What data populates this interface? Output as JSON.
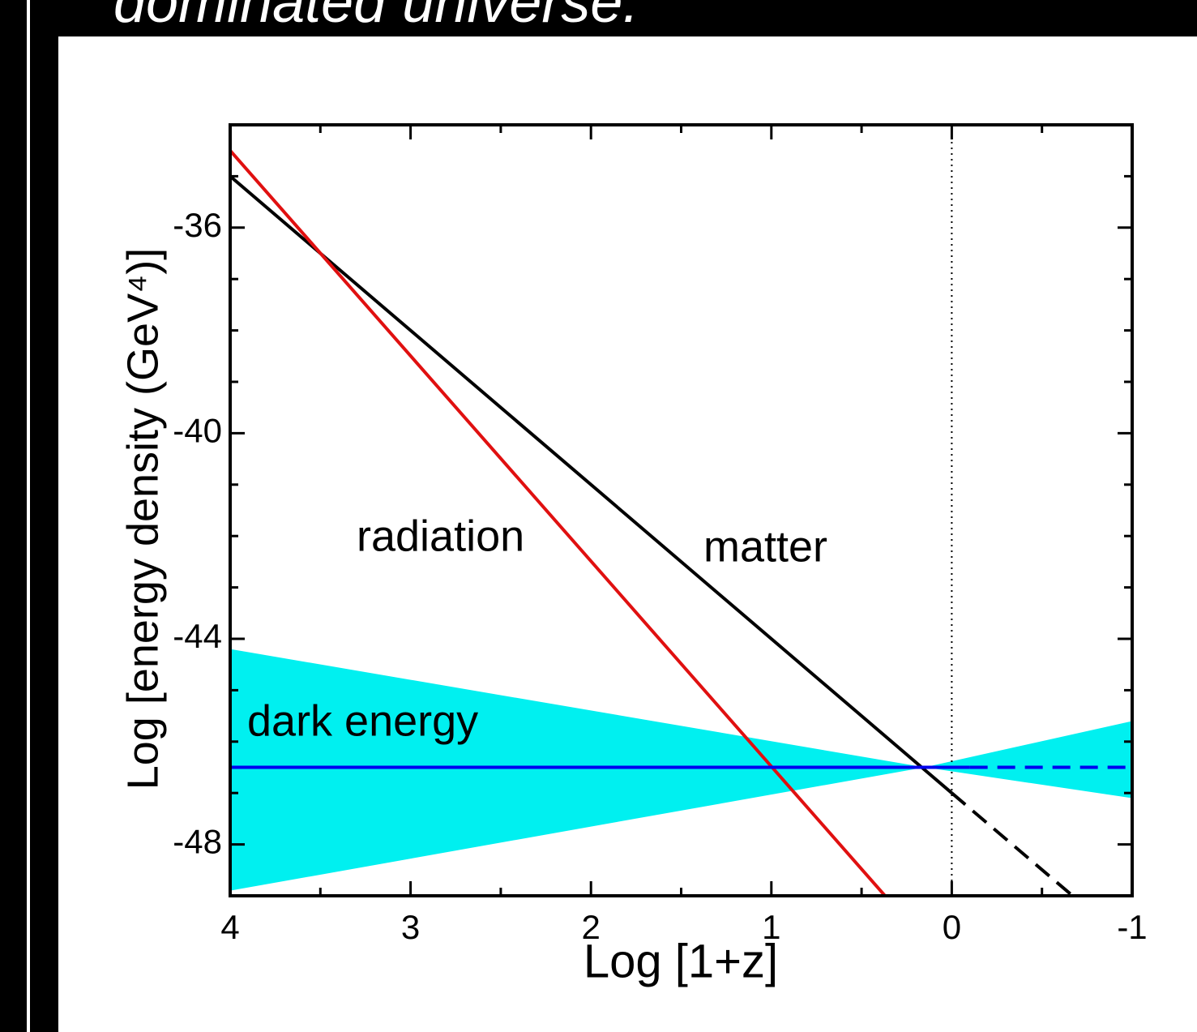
{
  "slide_text": "dominated universe.",
  "chart_data": {
    "type": "line",
    "xlabel": "Log [1+z]",
    "ylabel": "Log [energy density (GeV⁴)]",
    "xlim": [
      4,
      -1
    ],
    "ylim": [
      -49,
      -34
    ],
    "xticks": [
      4,
      3,
      2,
      1,
      0,
      -1
    ],
    "xminor": [
      3.5,
      2.5,
      1.5,
      0.5,
      -0.5
    ],
    "yticks": [
      -36,
      -40,
      -44,
      -48
    ],
    "yminor": [
      -35,
      -37,
      -38,
      -39,
      -41,
      -42,
      -43,
      -45,
      -46,
      -47,
      -49
    ],
    "band": {
      "color": "#00f0f0",
      "x": [
        4,
        0.15,
        -1
      ],
      "upper": [
        -44.2,
        -46.5,
        -45.6
      ],
      "lower": [
        -48.9,
        -46.5,
        -47.1
      ]
    },
    "vlines": [
      {
        "x": 0,
        "color": "#000",
        "style": "dotted"
      }
    ],
    "series": [
      {
        "color": "#000000",
        "style": "solid",
        "x": [
          4,
          0
        ],
        "values": [
          -35,
          -47
        ]
      },
      {
        "color": "#000000",
        "style": "dashed",
        "x": [
          0,
          -0.67
        ],
        "values": [
          -47,
          -49
        ]
      },
      {
        "color": "#e01010",
        "style": "solid",
        "x": [
          4,
          0.37
        ],
        "values": [
          -34.5,
          -49
        ]
      },
      {
        "color": "#0000ee",
        "style": "solid",
        "x": [
          4,
          -0.1
        ],
        "values": [
          -46.5,
          -46.5
        ]
      },
      {
        "color": "#0000ee",
        "style": "dashed",
        "x": [
          -0.1,
          -1
        ],
        "values": [
          -46.5,
          -46.5
        ]
      }
    ],
    "annotations": [
      "radiation",
      "matter",
      "dark energy"
    ]
  }
}
